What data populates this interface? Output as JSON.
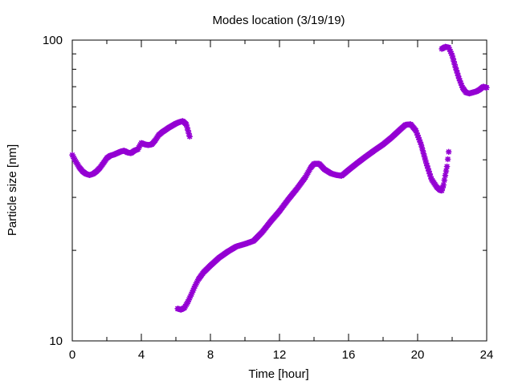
{
  "chart_data": {
    "type": "scatter",
    "title": "Modes location (3/19/19)",
    "xlabel": "Time [hour]",
    "ylabel": "Particle size [nm]",
    "xlim": [
      0,
      24
    ],
    "ylim": [
      10,
      100
    ],
    "yscale": "log",
    "grid": false,
    "x_ticks": [
      0,
      4,
      8,
      12,
      16,
      20,
      24
    ],
    "x_tick_labels": [
      "0",
      "4",
      "8",
      "12",
      "16",
      "20",
      "24"
    ],
    "y_ticks": [
      10,
      100
    ],
    "y_tick_labels": [
      "10",
      "100"
    ],
    "marker_color": "#9400d3",
    "series": [
      {
        "x": [
          0.0,
          0.2,
          0.4,
          0.6,
          0.8,
          1.0,
          1.2,
          1.4,
          1.6,
          1.8,
          2.0,
          2.2,
          2.4,
          2.6,
          2.8,
          3.0,
          3.2,
          3.4,
          3.6,
          3.8,
          4.0,
          4.2,
          4.4,
          4.6,
          4.8,
          5.0,
          5.2,
          5.4,
          5.6,
          5.8,
          6.0,
          6.2,
          6.4,
          6.6,
          6.8
        ],
        "y": [
          41.5,
          39.5,
          37.8,
          36.6,
          35.9,
          35.6,
          35.9,
          36.6,
          37.6,
          39.0,
          40.5,
          41.3,
          41.6,
          42.1,
          42.6,
          42.9,
          42.3,
          42.1,
          42.9,
          43.4,
          45.5,
          45.0,
          44.8,
          45.0,
          46.4,
          48.3,
          49.4,
          50.3,
          51.2,
          52.0,
          52.8,
          53.4,
          53.8,
          52.5,
          47.8
        ]
      },
      {
        "x": [
          6.1,
          6.3,
          6.5,
          6.7,
          6.9,
          7.1,
          7.3,
          7.6,
          8.0,
          8.5,
          9.0,
          9.5,
          10.0,
          10.5,
          11.0,
          11.5,
          12.0,
          12.5,
          13.0,
          13.5,
          13.8,
          14.0,
          14.3,
          14.6,
          15.0,
          15.3,
          15.6,
          16.0,
          16.5,
          17.0,
          17.5,
          18.0,
          18.5,
          19.0,
          19.3,
          19.6,
          19.9,
          20.2,
          20.5,
          20.8,
          21.1,
          21.3,
          21.4,
          21.5,
          21.6,
          21.7,
          21.8
        ],
        "y": [
          12.8,
          12.7,
          12.9,
          13.5,
          14.3,
          15.2,
          16.0,
          16.9,
          17.8,
          18.9,
          19.8,
          20.6,
          21.0,
          21.5,
          23.0,
          25.0,
          27.0,
          29.5,
          32.0,
          35.0,
          37.6,
          38.8,
          38.8,
          37.2,
          36.0,
          35.6,
          35.4,
          37.0,
          39.0,
          41.0,
          43.0,
          45.0,
          47.5,
          50.5,
          52.3,
          52.5,
          50.0,
          45.0,
          39.0,
          34.5,
          32.5,
          31.7,
          31.6,
          33.0,
          35.5,
          38.0,
          42.5
        ]
      },
      {
        "x": [
          21.4,
          21.6,
          21.8,
          22.0,
          22.2,
          22.4,
          22.6,
          22.8,
          23.0,
          23.2,
          23.4,
          23.6,
          23.8,
          24.0
        ],
        "y": [
          93.5,
          95.0,
          94.5,
          89.0,
          81.0,
          74.5,
          69.5,
          67.0,
          66.5,
          67.0,
          67.5,
          68.5,
          70.0,
          69.5
        ]
      }
    ]
  }
}
